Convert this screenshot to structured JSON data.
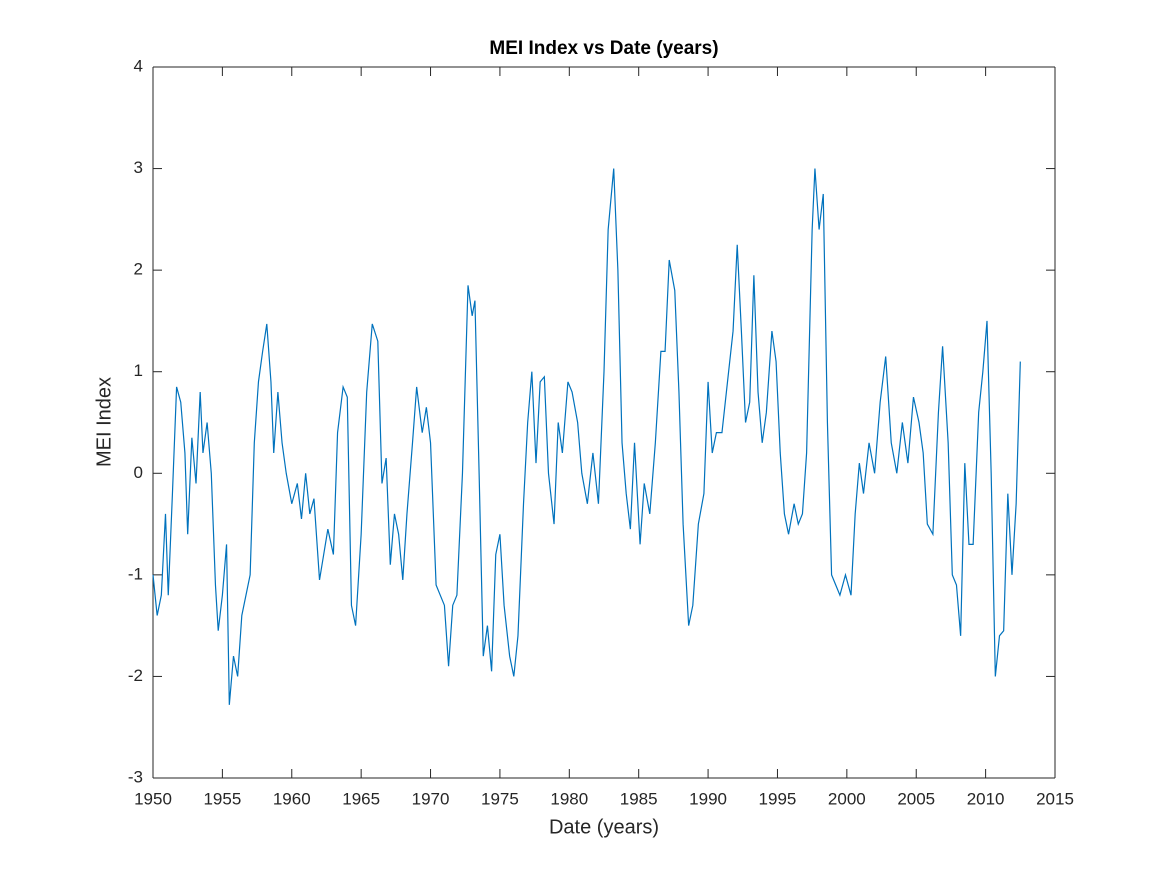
{
  "chart_data": {
    "type": "line",
    "title": "MEI Index vs Date (years)",
    "x_label": "Date (years)",
    "y_label": "MEI Index",
    "xlim": [
      1950,
      2015
    ],
    "xticks": [
      1950,
      1955,
      1960,
      1965,
      1970,
      1975,
      1980,
      1985,
      1990,
      1995,
      2000,
      2005,
      2010,
      2015
    ],
    "ylim": [
      -3,
      4
    ],
    "yticks": [
      -3,
      -2,
      -1,
      0,
      1,
      2,
      3,
      4
    ],
    "grid": false,
    "box": true,
    "x": [
      1950.0,
      1950.3,
      1950.6,
      1950.9,
      1951.1,
      1951.4,
      1951.7,
      1952.0,
      1952.3,
      1952.5,
      1952.8,
      1953.1,
      1953.4,
      1953.6,
      1953.9,
      1954.2,
      1954.5,
      1954.7,
      1955.0,
      1955.3,
      1955.5,
      1955.8,
      1956.1,
      1956.4,
      1956.7,
      1957.0,
      1957.3,
      1957.6,
      1957.9,
      1958.2,
      1958.5,
      1958.7,
      1959.0,
      1959.3,
      1959.6,
      1960.0,
      1960.4,
      1960.7,
      1961.0,
      1961.3,
      1961.6,
      1962.0,
      1962.3,
      1962.6,
      1963.0,
      1963.3,
      1963.7,
      1964.0,
      1964.3,
      1964.6,
      1965.0,
      1965.4,
      1965.8,
      1966.2,
      1966.5,
      1966.8,
      1967.1,
      1967.4,
      1967.7,
      1968.0,
      1968.3,
      1968.7,
      1969.0,
      1969.4,
      1969.7,
      1970.0,
      1970.4,
      1970.7,
      1971.0,
      1971.3,
      1971.6,
      1971.9,
      1972.3,
      1972.7,
      1973.0,
      1973.2,
      1973.5,
      1973.8,
      1974.1,
      1974.4,
      1974.7,
      1975.0,
      1975.3,
      1975.7,
      1976.0,
      1976.3,
      1976.7,
      1977.0,
      1977.3,
      1977.6,
      1977.9,
      1978.2,
      1978.5,
      1978.9,
      1979.2,
      1979.5,
      1979.9,
      1980.2,
      1980.6,
      1980.9,
      1981.3,
      1981.7,
      1982.1,
      1982.5,
      1982.8,
      1983.2,
      1983.5,
      1983.8,
      1984.1,
      1984.4,
      1984.7,
      1985.1,
      1985.4,
      1985.8,
      1986.2,
      1986.6,
      1986.9,
      1987.2,
      1987.6,
      1987.9,
      1988.2,
      1988.6,
      1988.9,
      1989.3,
      1989.7,
      1990.0,
      1990.3,
      1990.6,
      1991.0,
      1991.4,
      1991.8,
      1992.1,
      1992.4,
      1992.7,
      1993.0,
      1993.3,
      1993.6,
      1993.9,
      1994.2,
      1994.6,
      1994.9,
      1995.2,
      1995.5,
      1995.8,
      1996.2,
      1996.5,
      1996.8,
      1997.1,
      1997.5,
      1997.7,
      1998.0,
      1998.3,
      1998.6,
      1998.9,
      1999.2,
      1999.5,
      1999.9,
      2000.3,
      2000.6,
      2000.9,
      2001.2,
      2001.6,
      2002.0,
      2002.4,
      2002.8,
      2003.2,
      2003.6,
      2004.0,
      2004.4,
      2004.8,
      2005.2,
      2005.5,
      2005.8,
      2006.2,
      2006.6,
      2006.9,
      2007.3,
      2007.6,
      2007.9,
      2008.2,
      2008.5,
      2008.8,
      2009.1,
      2009.5,
      2009.8,
      2010.1,
      2010.4,
      2010.7,
      2011.0,
      2011.3,
      2011.6,
      2011.9,
      2012.2,
      2012.5
    ],
    "series": [
      {
        "name": "MEI Index",
        "color": "#0072bd",
        "values": [
          -1.0,
          -1.4,
          -1.2,
          -0.4,
          -1.2,
          -0.2,
          0.85,
          0.7,
          0.2,
          -0.6,
          0.35,
          -0.1,
          0.8,
          0.2,
          0.5,
          0.0,
          -1.1,
          -1.55,
          -1.2,
          -0.7,
          -2.28,
          -1.8,
          -2.0,
          -1.4,
          -1.2,
          -1.0,
          0.3,
          0.9,
          1.2,
          1.47,
          0.9,
          0.2,
          0.8,
          0.3,
          0.0,
          -0.3,
          -0.1,
          -0.45,
          0.0,
          -0.4,
          -0.25,
          -1.05,
          -0.8,
          -0.55,
          -0.8,
          0.4,
          0.85,
          0.75,
          -1.3,
          -1.5,
          -0.6,
          0.8,
          1.47,
          1.3,
          -0.1,
          0.15,
          -0.9,
          -0.4,
          -0.6,
          -1.05,
          -0.4,
          0.3,
          0.85,
          0.4,
          0.65,
          0.3,
          -1.1,
          -1.2,
          -1.3,
          -1.9,
          -1.3,
          -1.2,
          0.0,
          1.85,
          1.55,
          1.7,
          0.0,
          -1.8,
          -1.5,
          -1.95,
          -0.8,
          -0.6,
          -1.3,
          -1.8,
          -2.0,
          -1.6,
          -0.3,
          0.5,
          1.0,
          0.1,
          0.9,
          0.95,
          0.0,
          -0.5,
          0.5,
          0.2,
          0.9,
          0.8,
          0.5,
          0.0,
          -0.3,
          0.2,
          -0.3,
          1.0,
          2.4,
          3.0,
          2.0,
          0.3,
          -0.2,
          -0.55,
          0.3,
          -0.7,
          -0.1,
          -0.4,
          0.3,
          1.2,
          1.2,
          2.1,
          1.8,
          0.8,
          -0.5,
          -1.5,
          -1.3,
          -0.5,
          -0.2,
          0.9,
          0.2,
          0.4,
          0.4,
          0.9,
          1.4,
          2.25,
          1.4,
          0.5,
          0.7,
          1.95,
          0.8,
          0.3,
          0.6,
          1.4,
          1.1,
          0.2,
          -0.4,
          -0.6,
          -0.3,
          -0.5,
          -0.4,
          0.2,
          2.4,
          3.0,
          2.4,
          2.75,
          0.5,
          -1.0,
          -1.1,
          -1.2,
          -1.0,
          -1.2,
          -0.4,
          0.1,
          -0.2,
          0.3,
          0.0,
          0.7,
          1.15,
          0.3,
          0.0,
          0.5,
          0.1,
          0.75,
          0.5,
          0.2,
          -0.5,
          -0.6,
          0.6,
          1.25,
          0.3,
          -1.0,
          -1.1,
          -1.6,
          0.1,
          -0.7,
          -0.7,
          0.6,
          1.0,
          1.5,
          0.0,
          -2.0,
          -1.6,
          -1.55,
          -0.2,
          -1.0,
          -0.3,
          1.1
        ]
      }
    ]
  }
}
